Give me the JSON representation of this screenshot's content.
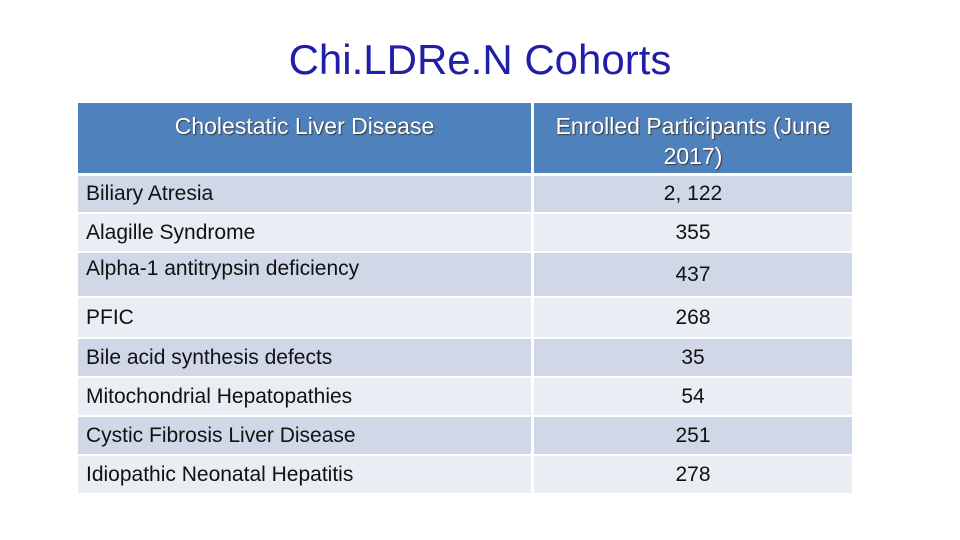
{
  "slide": {
    "title": "Chi.LDRe.N Cohorts"
  },
  "table": {
    "headers": {
      "disease": "Cholestatic Liver Disease",
      "participants": "Enrolled Participants (June 2017)"
    },
    "rows": [
      {
        "disease": "Biliary Atresia",
        "count": "2, 122"
      },
      {
        "disease": "Alagille Syndrome",
        "count": "355"
      },
      {
        "disease": "Alpha-1 antitrypsin deficiency",
        "count": "437"
      },
      {
        "disease": "PFIC",
        "count": "268"
      },
      {
        "disease": "Bile acid synthesis defects",
        "count": "35"
      },
      {
        "disease": "Mitochondrial Hepatopathies",
        "count": "54"
      },
      {
        "disease": "Cystic Fibrosis Liver Disease",
        "count": "251"
      },
      {
        "disease": "Idiopathic Neonatal Hepatitis",
        "count": "278"
      }
    ]
  },
  "colors": {
    "title": "#1f1fa8",
    "header_bg": "#4f81bd",
    "row_dark": "#d0d8e8",
    "row_light": "#e9edf4"
  }
}
